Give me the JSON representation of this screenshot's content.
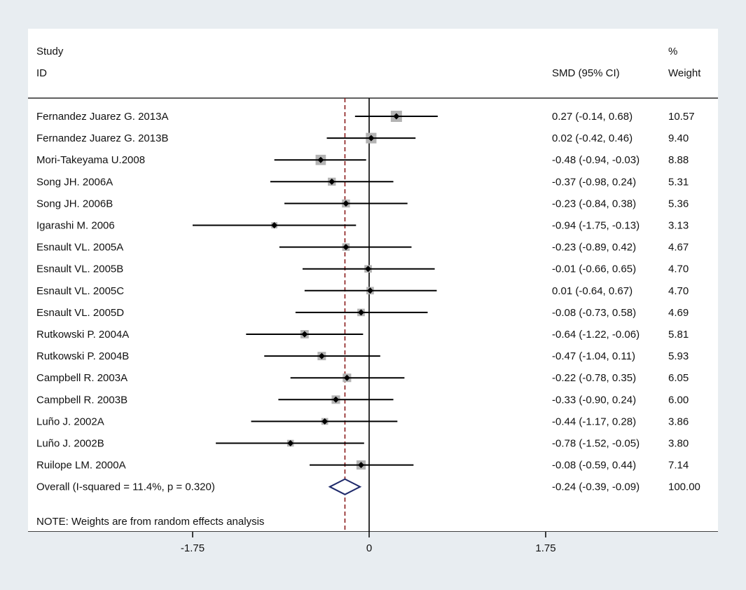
{
  "chart_data": {
    "type": "forest",
    "header": {
      "study_line1": "Study",
      "study_line2": "ID",
      "effect": "SMD (95% CI)",
      "weight_line1": "%",
      "weight_line2": "Weight"
    },
    "studies": [
      {
        "id": "Fernandez Juarez G. 2013A",
        "est": 0.27,
        "lo": -0.14,
        "hi": 0.68,
        "ci_text": "0.27 (-0.14, 0.68)",
        "weight": 10.57,
        "weight_text": "10.57"
      },
      {
        "id": "Fernandez Juarez G. 2013B",
        "est": 0.02,
        "lo": -0.42,
        "hi": 0.46,
        "ci_text": "0.02 (-0.42, 0.46)",
        "weight": 9.4,
        "weight_text": "9.40"
      },
      {
        "id": "Mori-Takeyama U.2008",
        "est": -0.48,
        "lo": -0.94,
        "hi": -0.03,
        "ci_text": "-0.48 (-0.94, -0.03)",
        "weight": 8.88,
        "weight_text": "8.88"
      },
      {
        "id": "Song JH. 2006A",
        "est": -0.37,
        "lo": -0.98,
        "hi": 0.24,
        "ci_text": "-0.37 (-0.98, 0.24)",
        "weight": 5.31,
        "weight_text": "5.31"
      },
      {
        "id": "Song JH. 2006B",
        "est": -0.23,
        "lo": -0.84,
        "hi": 0.38,
        "ci_text": "-0.23 (-0.84, 0.38)",
        "weight": 5.36,
        "weight_text": "5.36"
      },
      {
        "id": "Igarashi M. 2006",
        "est": -0.94,
        "lo": -1.75,
        "hi": -0.13,
        "ci_text": "-0.94 (-1.75, -0.13)",
        "weight": 3.13,
        "weight_text": "3.13"
      },
      {
        "id": "Esnault VL. 2005A",
        "est": -0.23,
        "lo": -0.89,
        "hi": 0.42,
        "ci_text": "-0.23 (-0.89, 0.42)",
        "weight": 4.67,
        "weight_text": "4.67"
      },
      {
        "id": "Esnault VL. 2005B",
        "est": -0.01,
        "lo": -0.66,
        "hi": 0.65,
        "ci_text": "-0.01 (-0.66, 0.65)",
        "weight": 4.7,
        "weight_text": "4.70"
      },
      {
        "id": "Esnault VL. 2005C",
        "est": 0.01,
        "lo": -0.64,
        "hi": 0.67,
        "ci_text": "0.01 (-0.64, 0.67)",
        "weight": 4.7,
        "weight_text": "4.70"
      },
      {
        "id": "Esnault VL. 2005D",
        "est": -0.08,
        "lo": -0.73,
        "hi": 0.58,
        "ci_text": "-0.08 (-0.73, 0.58)",
        "weight": 4.69,
        "weight_text": "4.69"
      },
      {
        "id": "Rutkowski P. 2004A",
        "est": -0.64,
        "lo": -1.22,
        "hi": -0.06,
        "ci_text": "-0.64 (-1.22, -0.06)",
        "weight": 5.81,
        "weight_text": "5.81"
      },
      {
        "id": "Rutkowski P. 2004B",
        "est": -0.47,
        "lo": -1.04,
        "hi": 0.11,
        "ci_text": "-0.47 (-1.04, 0.11)",
        "weight": 5.93,
        "weight_text": "5.93"
      },
      {
        "id": "Campbell R. 2003A",
        "est": -0.22,
        "lo": -0.78,
        "hi": 0.35,
        "ci_text": "-0.22 (-0.78, 0.35)",
        "weight": 6.05,
        "weight_text": "6.05"
      },
      {
        "id": "Campbell R. 2003B",
        "est": -0.33,
        "lo": -0.9,
        "hi": 0.24,
        "ci_text": "-0.33 (-0.90, 0.24)",
        "weight": 6.0,
        "weight_text": "6.00"
      },
      {
        "id": "Luño J. 2002A",
        "est": -0.44,
        "lo": -1.17,
        "hi": 0.28,
        "ci_text": "-0.44 (-1.17, 0.28)",
        "weight": 3.86,
        "weight_text": "3.86"
      },
      {
        "id": "Luño J. 2002B",
        "est": -0.78,
        "lo": -1.52,
        "hi": -0.05,
        "ci_text": "-0.78 (-1.52, -0.05)",
        "weight": 3.8,
        "weight_text": "3.80"
      },
      {
        "id": "Ruilope LM. 2000A",
        "est": -0.08,
        "lo": -0.59,
        "hi": 0.44,
        "ci_text": "-0.08 (-0.59, 0.44)",
        "weight": 7.14,
        "weight_text": "7.14"
      }
    ],
    "overall": {
      "label": "Overall  (I-squared = 11.4%, p = 0.320)",
      "est": -0.24,
      "lo": -0.39,
      "hi": -0.09,
      "ci_text": "-0.24 (-0.39, -0.09)",
      "weight_text": "100.00"
    },
    "note": "NOTE: Weights are from random effects analysis",
    "x_ticks": [
      {
        "value": -1.75,
        "label": "-1.75"
      },
      {
        "value": 0,
        "label": "0"
      },
      {
        "value": 1.75,
        "label": "1.75"
      }
    ],
    "null_line": 0,
    "colors": {
      "background": "#e8edf1",
      "panel": "#ffffff",
      "diamond": "#1f2a6b",
      "overall_line": "#8b1a1a",
      "weight_box": "#b3b3b3",
      "ci_line": "#000000"
    }
  }
}
